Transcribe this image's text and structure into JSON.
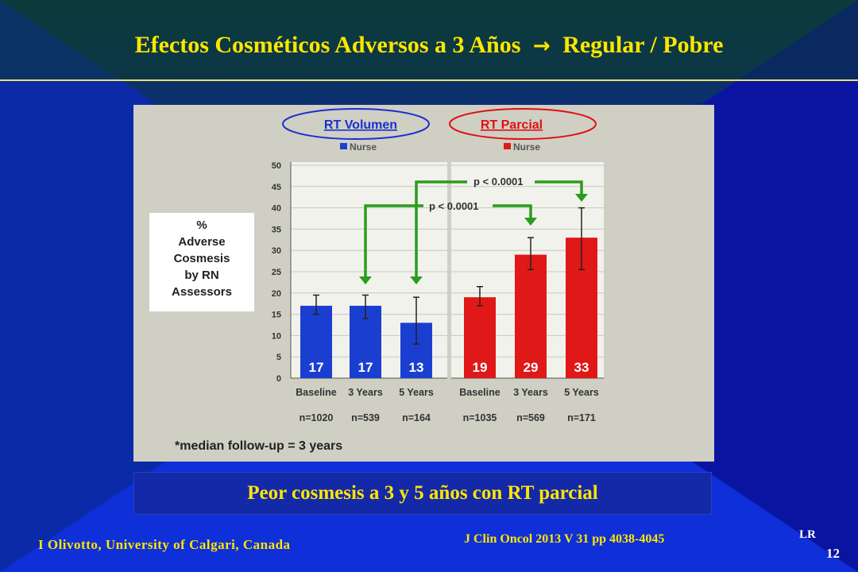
{
  "slide": {
    "title_left": "Efectos Cosméticos Adversos a 3 Años",
    "title_arrow": "→",
    "title_right": "Regular / Pobre",
    "conclusion": "Peor cosmesis a 3 y 5 años con RT parcial",
    "author": "I Olivotto, University of Calgari, Canada",
    "citation": "J Clin Oncol 2013 V 31 pp 4038-4045",
    "initials": "LR",
    "slide_number": "12"
  },
  "colors": {
    "title": "#ffe600",
    "blue_series": "#1a3fd0",
    "red_series": "#e01818",
    "arrow": "#2a9d1e"
  },
  "chart_data": {
    "type": "bar",
    "ylabel": "% Adverse Cosmesis by RN Assessors",
    "ylabel_lines": [
      "%",
      "Adverse",
      "Cosmesis",
      "by RN",
      "Assessors"
    ],
    "ylim": [
      0,
      50
    ],
    "yticks": [
      "0",
      "5",
      "10",
      "15",
      "20",
      "25",
      "30",
      "35",
      "40",
      "45",
      "50"
    ],
    "grid": true,
    "footnote": "*median follow-up = 3 years",
    "groups": [
      {
        "header": "RT Volumen",
        "legend": "Nurse",
        "color": "#1a3fd0",
        "categories": [
          "Baseline",
          "3 Years",
          "5 Years"
        ],
        "values": [
          17,
          17,
          13
        ],
        "value_labels": [
          "17",
          "17",
          "13"
        ],
        "error_low": [
          15,
          14,
          8
        ],
        "error_high": [
          19.5,
          19.5,
          19
        ],
        "n_labels": [
          "n=1020",
          "n=539",
          "n=164"
        ]
      },
      {
        "header": "RT Parcial",
        "legend": "Nurse",
        "color": "#e01818",
        "categories": [
          "Baseline",
          "3 Years",
          "5 Years"
        ],
        "values": [
          19,
          29,
          33
        ],
        "value_labels": [
          "19",
          "29",
          "33"
        ],
        "error_low": [
          17,
          25.5,
          25.5
        ],
        "error_high": [
          21.5,
          33,
          40
        ],
        "n_labels": [
          "n=1035",
          "n=569",
          "n=171"
        ]
      }
    ],
    "annotations": [
      "p < 0.0001",
      "p < 0.0001"
    ]
  }
}
